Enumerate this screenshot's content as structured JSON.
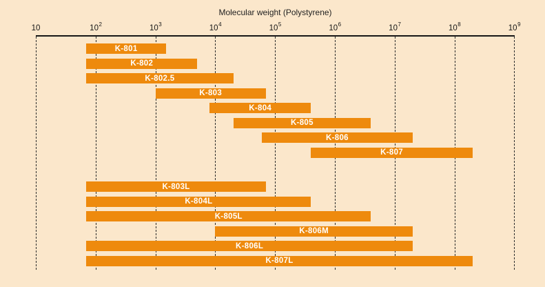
{
  "chart_data": {
    "type": "bar",
    "variant": "horizontal-log-range-bars",
    "title": "Molecular weight (Polystyrene)",
    "x_axis": {
      "scale": "log10",
      "min": 10,
      "max": 1000000000,
      "ticks": [
        {
          "base": "10",
          "exp": ""
        },
        {
          "base": "10",
          "exp": "2"
        },
        {
          "base": "10",
          "exp": "3"
        },
        {
          "base": "10",
          "exp": "4"
        },
        {
          "base": "10",
          "exp": "5"
        },
        {
          "base": "10",
          "exp": "6"
        },
        {
          "base": "10",
          "exp": "7"
        },
        {
          "base": "10",
          "exp": "8"
        },
        {
          "base": "10",
          "exp": "9"
        }
      ]
    },
    "grid": "vertical-dashed",
    "legend": "none",
    "series": [
      {
        "label": "K-801",
        "group": 1,
        "min": 70,
        "max": 1500
      },
      {
        "label": "K-802",
        "group": 1,
        "min": 70,
        "max": 5000
      },
      {
        "label": "K-802.5",
        "group": 1,
        "min": 70,
        "max": 20000
      },
      {
        "label": "K-803",
        "group": 1,
        "min": 1000,
        "max": 70000
      },
      {
        "label": "K-804",
        "group": 1,
        "min": 8000,
        "max": 400000
      },
      {
        "label": "K-805",
        "group": 1,
        "min": 20000,
        "max": 4000000
      },
      {
        "label": "K-806",
        "group": 1,
        "min": 60000,
        "max": 20000000
      },
      {
        "label": "K-807",
        "group": 1,
        "min": 400000,
        "max": 200000000
      },
      {
        "label": "K-803L",
        "group": 2,
        "min": 70,
        "max": 70000
      },
      {
        "label": "K-804L",
        "group": 2,
        "min": 70,
        "max": 400000
      },
      {
        "label": "K-805L",
        "group": 2,
        "min": 70,
        "max": 4000000
      },
      {
        "label": "K-806M",
        "group": 2,
        "min": 10000,
        "max": 20000000
      },
      {
        "label": "K-806L",
        "group": 2,
        "min": 70,
        "max": 20000000
      },
      {
        "label": "K-807L",
        "group": 2,
        "min": 70,
        "max": 200000000
      }
    ],
    "colors": {
      "background": "#FBE7CB",
      "bar": "#EE8A0D",
      "bar_label": "#FFFFFF",
      "axis": "#161616"
    }
  }
}
